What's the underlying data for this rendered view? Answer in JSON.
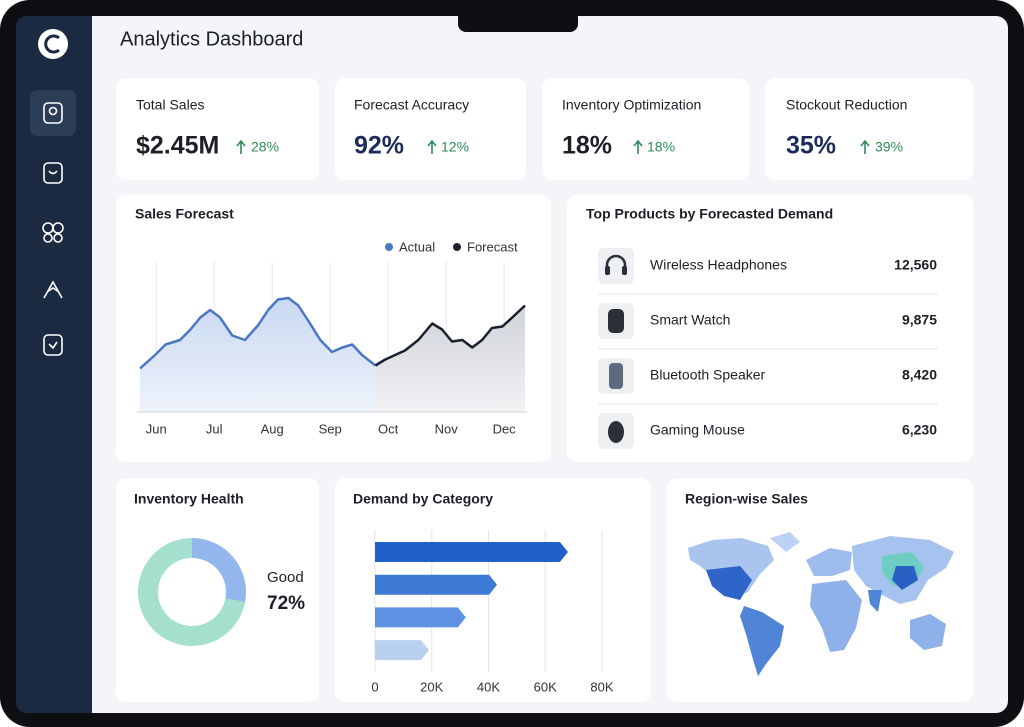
{
  "header": {
    "title": "Analytics Dashboard"
  },
  "kpis": [
    {
      "label": "Total Sales",
      "value": "$2.45M",
      "change": "28%"
    },
    {
      "label": "Forecast Accuracy",
      "value": "92%",
      "change": "12%"
    },
    {
      "label": "Inventory Optimization",
      "value": "18%",
      "change": "18%"
    },
    {
      "label": "Stockout Reduction",
      "value": "35%",
      "change": "39%"
    }
  ],
  "sales_forecast": {
    "type": "line",
    "title": "Sales Forecast",
    "xlim": [
      5.72,
      12.36
    ],
    "ylim": [
      0,
      100
    ],
    "xticks": [
      {
        "value": 6,
        "label": "Jun"
      },
      {
        "value": 7,
        "label": "Jul"
      },
      {
        "value": 8,
        "label": "Aug"
      },
      {
        "value": 9,
        "label": "Sep"
      },
      {
        "value": 10,
        "label": "Oct"
      },
      {
        "value": 11,
        "label": "Nov"
      },
      {
        "value": 12,
        "label": "Dec"
      }
    ],
    "grid": true,
    "series": [
      {
        "name": "Actual",
        "color": "#4a78c2",
        "x": [
          5.72,
          5.98,
          6.16,
          6.41,
          6.59,
          6.76,
          6.93,
          7.1,
          7.31,
          7.53,
          7.76,
          7.93,
          8.1,
          8.28,
          8.45,
          8.62,
          8.83,
          9.03,
          9.21,
          9.38,
          9.55,
          9.78
        ],
        "values": [
          29,
          38,
          45,
          48,
          55,
          63,
          68,
          63,
          51,
          48,
          58,
          68,
          75,
          76,
          71,
          61,
          48,
          40,
          43,
          45,
          38,
          31
        ]
      },
      {
        "name": "Forecast",
        "color": "#1a1f2e",
        "x": [
          9.78,
          9.95,
          10.12,
          10.29,
          10.52,
          10.76,
          10.93,
          11.1,
          11.28,
          11.45,
          11.62,
          11.79,
          11.97,
          12.14,
          12.36
        ],
        "values": [
          31,
          35,
          38,
          41,
          48,
          59,
          55,
          47,
          48,
          43,
          48,
          56,
          57,
          63,
          71
        ]
      }
    ]
  },
  "top_products": {
    "title": "Top Products by Forecasted Demand",
    "rows": [
      {
        "name": "Wireless Headphones",
        "value": "12,560"
      },
      {
        "name": "Smart Watch",
        "value": "9,875"
      },
      {
        "name": "Bluetooth Speaker",
        "value": "8,420"
      },
      {
        "name": "Gaming Mouse",
        "value": "6,230"
      }
    ]
  },
  "inventory_health": {
    "type": "donut",
    "title": "Inventory Health",
    "categories": [
      null,
      "Good"
    ],
    "values": [
      28,
      72
    ],
    "value_labels": [
      null,
      "72%"
    ],
    "colors": [
      "#93b6ec",
      "#a4e0cd"
    ]
  },
  "demand_by_category": {
    "type": "bar",
    "orientation": "horizontal",
    "title": "Demand by Category",
    "categories": [
      null,
      null,
      null,
      null
    ],
    "values": [
      68000,
      43000,
      32000,
      19000
    ],
    "colors": [
      "#1f5fc8",
      "#3d7ad6",
      "#5d93e2",
      "#b9d0f1"
    ],
    "xlim": [
      0,
      80000
    ],
    "xticks": [
      0,
      {
        "value": 20000,
        "label": "20K"
      },
      {
        "value": 40000,
        "label": "40K"
      },
      {
        "value": 60000,
        "label": "60K"
      },
      {
        "value": 80000,
        "label": "80K"
      }
    ],
    "grid": true
  },
  "region_sales": {
    "title": "Region-wise Sales"
  }
}
